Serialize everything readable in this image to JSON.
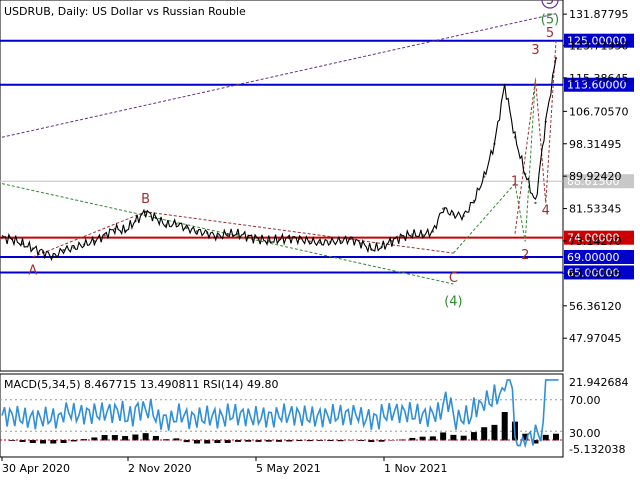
{
  "header": {
    "title": "USDRUB, Daily:  US Dollar vs Russian Rouble",
    "indicator_label": "MACD(5,34,5) 8.467715 13.490811 RSI(14) 49.80"
  },
  "colors": {
    "price_line": "#000000",
    "blue_level": "#0000cc",
    "red_level": "#cc0000",
    "gray_level": "#c0c0c0",
    "wave_red": "#a03030",
    "wave_green": "#2e8b2e",
    "wave_purple": "#6a2c91",
    "rsi_line": "#2f8fdc",
    "macd_hist": "#000000",
    "macd_signal": "#cc0000"
  },
  "chart_data": {
    "type": "line",
    "title": "USDRUB, Daily:  US Dollar vs Russian Rouble",
    "ylim": [
      40.0,
      140.0
    ],
    "price_ticks": [
      "131.87795",
      "123.71950",
      "115.38645",
      "106.70570",
      "98.31495",
      "89.92420",
      "81.53345",
      "73.14270",
      "64.75195",
      "56.36120",
      "47.97045"
    ],
    "time_ticks": [
      "30 Apr 2020",
      "2 Nov 2020",
      "5 May 2021",
      "1 Nov 2021"
    ],
    "series": [
      {
        "values": [
          74,
          73.6,
          72.4,
          71.2,
          70.3,
          69.1,
          70.8,
          71.4,
          72.2,
          73.1,
          74.6,
          76.3,
          75.8,
          78.3,
          80.7,
          79.1,
          77.2,
          77.6,
          76.5,
          75.6,
          75.2,
          74.4,
          74.9,
          75.0,
          74.3,
          73.7,
          73.1,
          73.5,
          73.9,
          73.7,
          73.0,
          72.7,
          72.9,
          73.1,
          73.7,
          72.5,
          71.0,
          71.6,
          73.1,
          74.3,
          74.8,
          74.7,
          75.6,
          81.5,
          80.0,
          79.6,
          83.5,
          89.8,
          98.3,
          113.5,
          100.0,
          90.5,
          83.0,
          104.0,
          120.5
        ]
      }
    ],
    "price_levels": [
      {
        "value": 125.0,
        "label": "125.00000",
        "style": "blue"
      },
      {
        "value": 113.6,
        "label": "113.60000",
        "style": "blue"
      },
      {
        "value": 88.615,
        "label": "88.61500",
        "style": "gray"
      },
      {
        "value": 74.0,
        "label": "74.00000",
        "style": "red"
      },
      {
        "value": 69.0,
        "label": "69.00000",
        "style": "blue"
      },
      {
        "value": 65.0,
        "label": "65.00000",
        "style": "blue"
      }
    ],
    "wave_labels": [
      {
        "label": "A",
        "index": 3,
        "value": 64.5,
        "color": "red"
      },
      {
        "label": "B",
        "index": 14,
        "value": 83.0,
        "color": "red"
      },
      {
        "label": "C",
        "index": 44,
        "value": 62.5,
        "color": "red"
      },
      {
        "label": "(4)",
        "index": 44,
        "value": 56.5,
        "color": "green"
      },
      {
        "label": "1",
        "index": 50,
        "value": 87.5,
        "color": "red"
      },
      {
        "label": "2",
        "index": 51,
        "value": 68.5,
        "color": "red"
      },
      {
        "label": "3",
        "index": 52,
        "value": 121.5,
        "color": "red"
      },
      {
        "label": "4",
        "index": 53,
        "value": 80.0,
        "color": "red"
      },
      {
        "label": "5",
        "index": 54,
        "value": 126.0,
        "color": "red"
      },
      {
        "label": "(5)",
        "index": 54,
        "value": 129.5,
        "color": "green"
      },
      {
        "label": "5",
        "index": 54,
        "value": 134.5,
        "color": "purple"
      }
    ],
    "indicator": {
      "macd_label": "MACD(5,34,5)",
      "macd_main": 8.467715,
      "macd_signal": 13.490811,
      "rsi_label": "RSI(14)",
      "rsi": 49.8,
      "scale_ticks": [
        "21.942684",
        "70.00",
        "30.00",
        "-5.132038"
      ],
      "rsi_levels": [
        70,
        30
      ]
    }
  }
}
